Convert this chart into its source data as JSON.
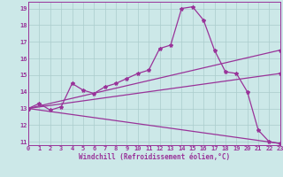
{
  "background_color": "#cce8e8",
  "grid_color": "#aacccc",
  "line_color": "#993399",
  "xlabel": "Windchill (Refroidissement éolien,°C)",
  "xlim": [
    0,
    23
  ],
  "ylim": [
    10.8,
    19.4
  ],
  "yticks": [
    11,
    12,
    13,
    14,
    15,
    16,
    17,
    18,
    19
  ],
  "xticks": [
    0,
    1,
    2,
    3,
    4,
    5,
    6,
    7,
    8,
    9,
    10,
    11,
    12,
    13,
    14,
    15,
    16,
    17,
    18,
    19,
    20,
    21,
    22,
    23
  ],
  "series1_x": [
    0,
    1,
    2,
    3,
    4,
    5,
    6,
    7,
    8,
    9,
    10,
    11,
    12,
    13,
    14,
    15,
    16,
    17,
    18,
    19,
    20,
    21,
    22,
    23
  ],
  "series1_y": [
    13.0,
    13.3,
    12.9,
    13.1,
    14.5,
    14.1,
    13.9,
    14.3,
    14.5,
    14.8,
    15.1,
    15.3,
    16.6,
    16.8,
    19.0,
    19.1,
    18.3,
    16.5,
    15.2,
    15.1,
    14.0,
    11.7,
    11.0,
    10.9
  ],
  "series2_x": [
    0,
    23
  ],
  "series2_y": [
    13.0,
    16.5
  ],
  "series3_x": [
    0,
    23
  ],
  "series3_y": [
    13.0,
    15.1
  ],
  "series4_x": [
    0,
    23
  ],
  "series4_y": [
    13.0,
    10.9
  ],
  "markersize": 3,
  "linewidth": 0.9,
  "tick_fontsize": 5.0,
  "xlabel_fontsize": 5.5
}
